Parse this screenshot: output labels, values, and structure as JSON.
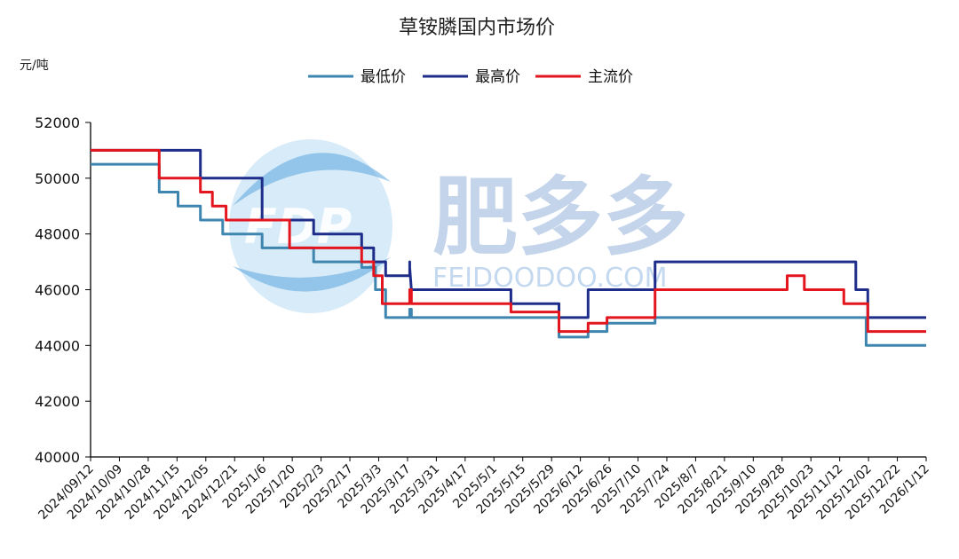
{
  "watermark": {
    "brand_cn": "肥多多",
    "brand_en": "FEIDOODOO.COM",
    "logo": "FDP"
  },
  "colors": {
    "low": "#3e86b0",
    "high": "#1f2d8a",
    "main": "#e3151f"
  },
  "chart_data": {
    "type": "line",
    "title": "草铵膦国内市场价",
    "ylabel": "元/吨",
    "xlabel": "",
    "ylim": [
      40000,
      52000
    ],
    "yticks": [
      40000,
      42000,
      44000,
      46000,
      48000,
      50000,
      52000
    ],
    "xlim": [
      "2024-09-12",
      "2026-01-12"
    ],
    "xtick_labels": [
      "2024/09/12",
      "2024/10/09",
      "2024/10/28",
      "2024/11/15",
      "2024/12/05",
      "2024/12/21",
      "2025/1/6",
      "2025/1/20",
      "2025/2/3",
      "2025/2/17",
      "2025/3/3",
      "2025/3/17",
      "2025/3/31",
      "2025/4/17",
      "2025/5/1",
      "2025/5/15",
      "2025/5/29",
      "2025/6/12",
      "2025/6/26",
      "2025/7/10",
      "2025/7/24",
      "2025/8/7",
      "2025/8/21",
      "2025/9/10",
      "2025/9/28",
      "2025/10/23",
      "2025/11/12",
      "2025/12/02",
      "2025/12/22",
      "2026/1/12"
    ],
    "legend_position": "top-center",
    "grid": false,
    "series": [
      {
        "name": "最低价",
        "key": "low",
        "points": [
          [
            "2024-09-12",
            50500
          ],
          [
            "2024-10-22",
            50500
          ],
          [
            "2024-10-22",
            49500
          ],
          [
            "2024-11-02",
            49500
          ],
          [
            "2024-11-02",
            49000
          ],
          [
            "2024-11-15",
            49000
          ],
          [
            "2024-11-15",
            48500
          ],
          [
            "2024-11-28",
            48500
          ],
          [
            "2024-11-28",
            48000
          ],
          [
            "2024-12-21",
            48000
          ],
          [
            "2024-12-21",
            47500
          ],
          [
            "2025-01-20",
            47500
          ],
          [
            "2025-01-20",
            47000
          ],
          [
            "2025-02-17",
            47000
          ],
          [
            "2025-02-17",
            46800
          ],
          [
            "2025-02-25",
            46800
          ],
          [
            "2025-02-25",
            46000
          ],
          [
            "2025-03-03",
            46000
          ],
          [
            "2025-03-03",
            45000
          ],
          [
            "2025-03-17",
            45000
          ],
          [
            "2025-03-17",
            45300
          ],
          [
            "2025-03-18",
            45300
          ],
          [
            "2025-03-18",
            45000
          ],
          [
            "2025-06-12",
            45000
          ],
          [
            "2025-06-12",
            44300
          ],
          [
            "2025-06-29",
            44300
          ],
          [
            "2025-06-29",
            44500
          ],
          [
            "2025-07-10",
            44500
          ],
          [
            "2025-07-10",
            44800
          ],
          [
            "2025-08-07",
            44800
          ],
          [
            "2025-08-07",
            45000
          ],
          [
            "2025-12-08",
            45000
          ],
          [
            "2025-12-08",
            44000
          ],
          [
            "2026-01-12",
            44000
          ]
        ]
      },
      {
        "name": "最高价",
        "key": "high",
        "points": [
          [
            "2024-09-12",
            51000
          ],
          [
            "2024-11-15",
            51000
          ],
          [
            "2024-11-15",
            50000
          ],
          [
            "2024-12-21",
            50000
          ],
          [
            "2024-12-21",
            48500
          ],
          [
            "2025-01-20",
            48500
          ],
          [
            "2025-01-20",
            48000
          ],
          [
            "2025-02-17",
            48000
          ],
          [
            "2025-02-17",
            47500
          ],
          [
            "2025-02-24",
            47500
          ],
          [
            "2025-02-24",
            47000
          ],
          [
            "2025-03-03",
            47000
          ],
          [
            "2025-03-03",
            46500
          ],
          [
            "2025-03-17",
            46500
          ],
          [
            "2025-03-17",
            47000
          ],
          [
            "2025-03-17",
            46800
          ],
          [
            "2025-03-18",
            46000
          ],
          [
            "2025-05-15",
            46000
          ],
          [
            "2025-05-15",
            45500
          ],
          [
            "2025-06-12",
            45500
          ],
          [
            "2025-06-12",
            45000
          ],
          [
            "2025-06-29",
            45000
          ],
          [
            "2025-06-29",
            46000
          ],
          [
            "2025-08-07",
            46000
          ],
          [
            "2025-08-07",
            47000
          ],
          [
            "2025-12-02",
            47000
          ],
          [
            "2025-12-02",
            46000
          ],
          [
            "2025-12-09",
            46000
          ],
          [
            "2025-12-09",
            45000
          ],
          [
            "2026-01-12",
            45000
          ]
        ]
      },
      {
        "name": "主流价",
        "key": "main",
        "points": [
          [
            "2024-09-12",
            51000
          ],
          [
            "2024-10-22",
            51000
          ],
          [
            "2024-10-22",
            50000
          ],
          [
            "2024-11-15",
            50000
          ],
          [
            "2024-11-15",
            49500
          ],
          [
            "2024-11-22",
            49500
          ],
          [
            "2024-11-22",
            49000
          ],
          [
            "2024-11-30",
            49000
          ],
          [
            "2024-11-30",
            48500
          ],
          [
            "2025-01-06",
            48500
          ],
          [
            "2025-01-06",
            47500
          ],
          [
            "2025-02-17",
            47500
          ],
          [
            "2025-02-17",
            47000
          ],
          [
            "2025-02-24",
            47000
          ],
          [
            "2025-02-24",
            46500
          ],
          [
            "2025-03-01",
            46500
          ],
          [
            "2025-03-01",
            45500
          ],
          [
            "2025-03-17",
            45500
          ],
          [
            "2025-03-17",
            46000
          ],
          [
            "2025-03-18",
            46000
          ],
          [
            "2025-03-18",
            45500
          ],
          [
            "2025-05-15",
            45500
          ],
          [
            "2025-05-15",
            45200
          ],
          [
            "2025-06-12",
            45200
          ],
          [
            "2025-06-12",
            44500
          ],
          [
            "2025-06-29",
            44500
          ],
          [
            "2025-06-29",
            44800
          ],
          [
            "2025-07-10",
            44800
          ],
          [
            "2025-07-10",
            45000
          ],
          [
            "2025-08-07",
            45000
          ],
          [
            "2025-08-07",
            46000
          ],
          [
            "2025-10-23",
            46000
          ],
          [
            "2025-10-23",
            46500
          ],
          [
            "2025-11-02",
            46500
          ],
          [
            "2025-11-02",
            46000
          ],
          [
            "2025-11-25",
            46000
          ],
          [
            "2025-11-25",
            45500
          ],
          [
            "2025-12-09",
            45500
          ],
          [
            "2025-12-09",
            44500
          ],
          [
            "2026-01-12",
            44500
          ]
        ]
      }
    ]
  }
}
